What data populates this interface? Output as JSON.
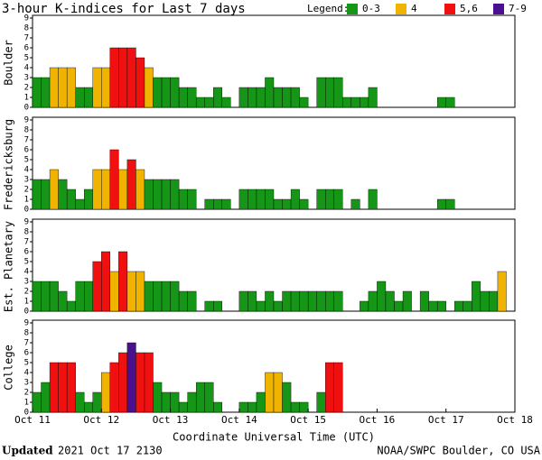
{
  "title": "3-hour K-indices for Last 7 days",
  "legend": {
    "title": "Legend:",
    "items": [
      {
        "name": "0-3",
        "color": "#169616"
      },
      {
        "name": "4",
        "color": "#f0b400"
      },
      {
        "name": "5,6",
        "color": "#f01010"
      },
      {
        "name": "7-9",
        "color": "#4b1090"
      }
    ]
  },
  "xlabel": "Coordinate Universal Time (UTC)",
  "footer": {
    "updated_label": "Updated",
    "updated": "2021 Oct 17 2130",
    "source": "NOAA/SWPC Boulder, CO USA"
  },
  "chart_data": [
    {
      "type": "bar",
      "ylabel": "Boulder",
      "ylim": [
        0,
        9
      ],
      "yticks": [
        0,
        1,
        2,
        3,
        4,
        5,
        6,
        7,
        8,
        9
      ],
      "xlim": [
        0,
        56
      ],
      "values": [
        3,
        3,
        4,
        4,
        4,
        2,
        2,
        4,
        4,
        6,
        6,
        6,
        5,
        4,
        3,
        3,
        3,
        2,
        2,
        1,
        1,
        2,
        1,
        0,
        2,
        2,
        2,
        3,
        2,
        2,
        2,
        1,
        0,
        3,
        3,
        3,
        1,
        1,
        1,
        2,
        0,
        0,
        0,
        0,
        0,
        0,
        0,
        1,
        1,
        0,
        0,
        0,
        0,
        0,
        0,
        0
      ]
    },
    {
      "type": "bar",
      "ylabel": "Fredericksburg",
      "ylim": [
        0,
        9
      ],
      "yticks": [
        0,
        1,
        2,
        3,
        4,
        5,
        6,
        7,
        8,
        9
      ],
      "xlim": [
        0,
        56
      ],
      "values": [
        3,
        3,
        4,
        3,
        2,
        1,
        2,
        4,
        4,
        6,
        4,
        5,
        4,
        3,
        3,
        3,
        3,
        2,
        2,
        0,
        1,
        1,
        1,
        0,
        2,
        2,
        2,
        2,
        1,
        1,
        2,
        1,
        0,
        2,
        2,
        2,
        0,
        1,
        0,
        2,
        0,
        0,
        0,
        0,
        0,
        0,
        0,
        1,
        1,
        0,
        0,
        0,
        0,
        0,
        0,
        0
      ]
    },
    {
      "type": "bar",
      "ylabel": "Est. Planetary",
      "ylim": [
        0,
        9
      ],
      "yticks": [
        0,
        1,
        2,
        3,
        4,
        5,
        6,
        7,
        8,
        9
      ],
      "xlim": [
        0,
        56
      ],
      "values": [
        3,
        3,
        3,
        2,
        1,
        3,
        3,
        5,
        6,
        4,
        6,
        4,
        4,
        3,
        3,
        3,
        3,
        2,
        2,
        0,
        1,
        1,
        0,
        0,
        2,
        2,
        1,
        2,
        1,
        2,
        2,
        2,
        2,
        2,
        2,
        2,
        0,
        0,
        1,
        2,
        3,
        2,
        1,
        2,
        0,
        2,
        1,
        1,
        0,
        1,
        1,
        3,
        2,
        2,
        4,
        null
      ]
    },
    {
      "type": "bar",
      "ylabel": "College",
      "ylim": [
        0,
        9
      ],
      "yticks": [
        0,
        1,
        2,
        3,
        4,
        5,
        6,
        7,
        8,
        9
      ],
      "xlim": [
        0,
        56
      ],
      "values": [
        2,
        3,
        5,
        5,
        5,
        2,
        1,
        2,
        4,
        5,
        6,
        7,
        6,
        6,
        3,
        2,
        2,
        1,
        2,
        3,
        3,
        1,
        0,
        0,
        1,
        1,
        2,
        4,
        4,
        3,
        1,
        1,
        0,
        2,
        5,
        5,
        0,
        0,
        0,
        0,
        0,
        0,
        0,
        0,
        0,
        0,
        0,
        0,
        0,
        0,
        0,
        0,
        0,
        0,
        0,
        0
      ],
      "xticks": [
        {
          "value": 0,
          "label": "Oct 11"
        },
        {
          "value": 8,
          "label": "Oct 12"
        },
        {
          "value": 16,
          "label": "Oct 13"
        },
        {
          "value": 24,
          "label": "Oct 14"
        },
        {
          "value": 32,
          "label": "Oct 15"
        },
        {
          "value": 40,
          "label": "Oct 16"
        },
        {
          "value": 48,
          "label": "Oct 17"
        },
        {
          "value": 56,
          "label": "Oct 18"
        }
      ]
    }
  ]
}
